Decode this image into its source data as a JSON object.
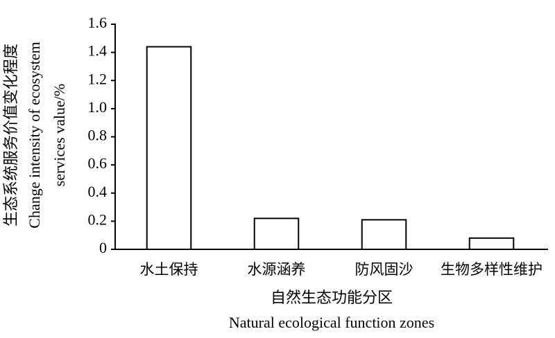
{
  "chart_data": {
    "type": "bar",
    "y_title_lines": [
      "生态系统服务价值变化程度",
      "Change intensity of ecosystem",
      "services value/%"
    ],
    "x_title_lines": [
      "自然生态功能分区",
      "Natural ecological function zones"
    ],
    "categories": [
      "水土保持",
      "水源涵养",
      "防风固沙",
      "生物多样性维护"
    ],
    "values": [
      1.44,
      0.22,
      0.21,
      0.08
    ],
    "color": "#ffffff",
    "ylim": [
      0,
      1.6
    ],
    "yticks": [
      0,
      0.2,
      0.4,
      0.6,
      0.8,
      {
        "value": 1,
        "label": "1.0"
      },
      1.2,
      1.4,
      1.6
    ],
    "grid": false
  }
}
